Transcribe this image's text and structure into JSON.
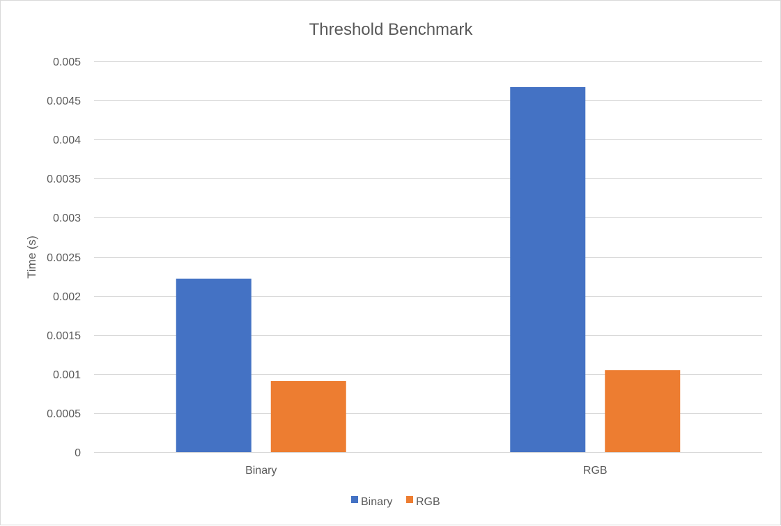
{
  "chart_data": {
    "type": "bar",
    "title": "Threshold Benchmark",
    "xlabel": "",
    "ylabel": "Time (s)",
    "categories": [
      "Binary",
      "RGB"
    ],
    "ylim": [
      0,
      0.005
    ],
    "yticks": [
      0,
      0.0005,
      0.001,
      0.0015,
      0.002,
      0.0025,
      0.003,
      0.0035,
      0.004,
      0.0045,
      0.005
    ],
    "ytick_labels": [
      "0",
      "0.0005",
      "0.001",
      "0.0015",
      "0.002",
      "0.0025",
      "0.003",
      "0.0035",
      "0.004",
      "0.0045",
      "0.005"
    ],
    "grid": true,
    "legend_position": "bottom",
    "series": [
      {
        "name": "Binary",
        "color": "#4472c4",
        "values": [
          0.00222,
          0.00467
        ]
      },
      {
        "name": "RGB",
        "color": "#ed7d31",
        "values": [
          0.00091,
          0.00105
        ]
      }
    ]
  }
}
